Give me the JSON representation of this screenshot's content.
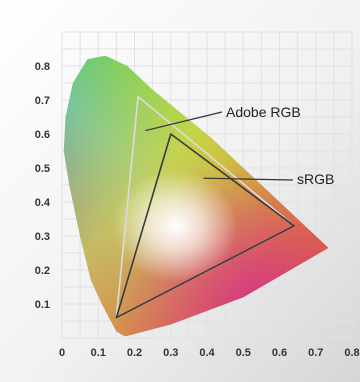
{
  "chart_data": {
    "type": "area",
    "xlim": [
      0,
      0.8
    ],
    "ylim": [
      0,
      0.9
    ],
    "x_ticks": [
      "0",
      "0.1",
      "0.2",
      "0.3",
      "0.4",
      "0.5",
      "0.6",
      "0.7",
      "0.8"
    ],
    "y_ticks": [
      "0.1",
      "0.2",
      "0.3",
      "0.4",
      "0.5",
      "0.6",
      "0.7",
      "0.8"
    ],
    "grid": true,
    "locus": [
      [
        0.175,
        0.005
      ],
      [
        0.165,
        0.01
      ],
      [
        0.15,
        0.02
      ],
      [
        0.13,
        0.06
      ],
      [
        0.11,
        0.1
      ],
      [
        0.08,
        0.17
      ],
      [
        0.05,
        0.3
      ],
      [
        0.02,
        0.45
      ],
      [
        0.005,
        0.55
      ],
      [
        0.01,
        0.65
      ],
      [
        0.03,
        0.75
      ],
      [
        0.07,
        0.82
      ],
      [
        0.12,
        0.83
      ],
      [
        0.18,
        0.8
      ],
      [
        0.25,
        0.73
      ],
      [
        0.33,
        0.66
      ],
      [
        0.41,
        0.59
      ],
      [
        0.49,
        0.51
      ],
      [
        0.57,
        0.43
      ],
      [
        0.63,
        0.37
      ],
      [
        0.69,
        0.31
      ],
      [
        0.735,
        0.265
      ],
      [
        0.5,
        0.12
      ],
      [
        0.3,
        0.04
      ],
      [
        0.175,
        0.005
      ]
    ],
    "series": [
      {
        "name": "Adobe RGB",
        "points": [
          [
            0.64,
            0.33
          ],
          [
            0.21,
            0.71
          ],
          [
            0.15,
            0.06
          ]
        ]
      },
      {
        "name": "sRGB",
        "points": [
          [
            0.64,
            0.33
          ],
          [
            0.3,
            0.6
          ],
          [
            0.15,
            0.06
          ]
        ]
      }
    ],
    "white_point": [
      0.3127,
      0.329
    ]
  }
}
